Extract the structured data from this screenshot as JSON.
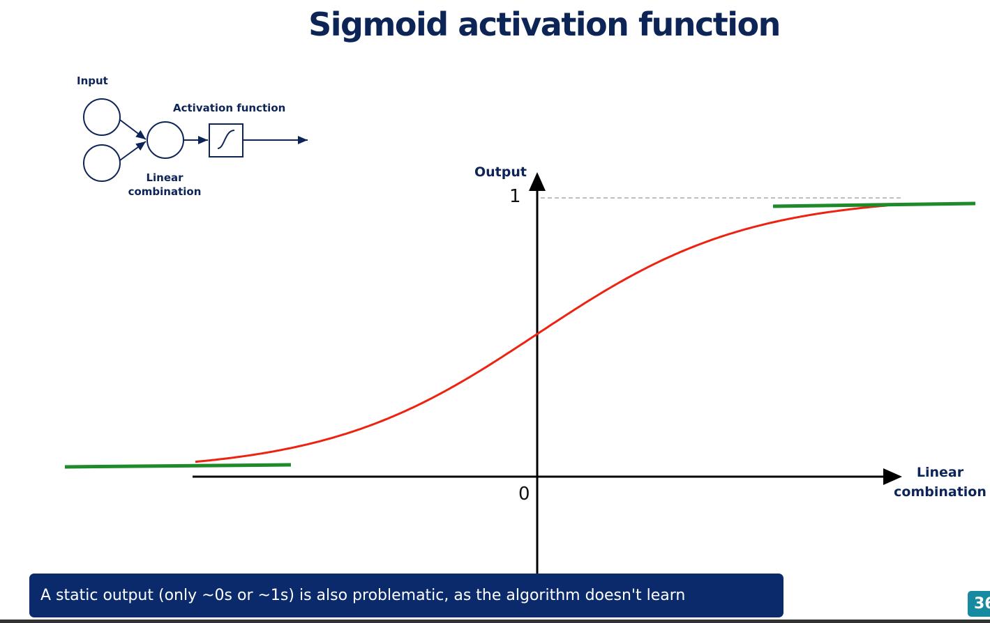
{
  "title": "Sigmoid activation function",
  "diagram": {
    "input_label": "Input",
    "activation_label": "Activation function",
    "linear_label_line1": "Linear",
    "linear_label_line2": "combination"
  },
  "graph": {
    "y_axis_label": "Output",
    "x_axis_label_line1": "Linear",
    "x_axis_label_line2": "combination",
    "y_tick_top": "1",
    "origin_tick": "0",
    "curve_color": "#ee2211",
    "saturation_color": "#1e8a2a"
  },
  "banner": {
    "text": "A static output (only ~0s or ~1s) is also problematic, as the algorithm doesn't learn"
  },
  "page_number": "36"
}
